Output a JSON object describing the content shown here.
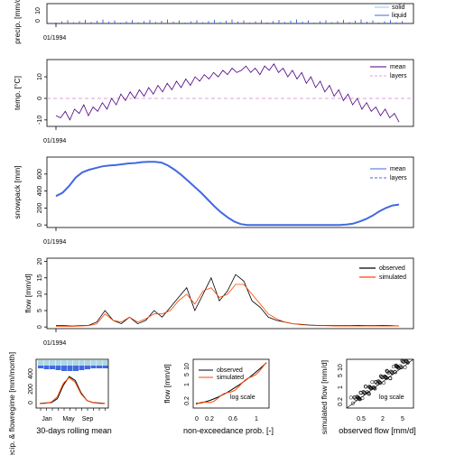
{
  "chart_data": [
    {
      "id": "precip",
      "type": "bar",
      "ylabel": "precip. [mm/d]",
      "x_tick_label": "01/1994",
      "y_ticks": [
        0,
        10
      ],
      "legend": [
        "solid",
        "liquid"
      ],
      "colors": {
        "solid": "#87cefa",
        "liquid": "#4169e1"
      }
    },
    {
      "id": "temperature",
      "type": "line",
      "ylabel": "temp. [°C]",
      "x_tick_label": "01/1994",
      "y_ticks": [
        -10,
        0,
        10
      ],
      "ylim": [
        -13,
        18
      ],
      "legend": [
        "mean",
        "layers"
      ],
      "colors": {
        "mean": "#4b0082",
        "layers": "#dda0dd"
      },
      "series": [
        {
          "name": "mean",
          "values": [
            -8,
            -9,
            -6,
            -10,
            -5,
            -7,
            -3,
            -8,
            -4,
            -6,
            -2,
            -5,
            0,
            -3,
            2,
            -1,
            3,
            0,
            4,
            1,
            5,
            2,
            6,
            3,
            7,
            4,
            8,
            5,
            9,
            6,
            10,
            8,
            11,
            9,
            12,
            10,
            13,
            11,
            14,
            12,
            13,
            15,
            12,
            14,
            11,
            15,
            13,
            16,
            12,
            14,
            10,
            13,
            9,
            12,
            7,
            10,
            5,
            8,
            3,
            6,
            1,
            4,
            -1,
            2,
            -3,
            0,
            -5,
            -2,
            -6,
            -4,
            -8,
            -5,
            -9,
            -7,
            -11
          ]
        }
      ]
    },
    {
      "id": "snowpack",
      "type": "line",
      "ylabel": "snowpack [mm]",
      "x_tick_label": "01/1994",
      "y_ticks": [
        0,
        200,
        400,
        600
      ],
      "ylim": [
        -30,
        800
      ],
      "legend": [
        "mean",
        "layers"
      ],
      "colors": {
        "mean": "#4169e1",
        "layers": "#4169e1"
      },
      "series": [
        {
          "name": "mean",
          "values": [
            340,
            380,
            460,
            560,
            620,
            650,
            670,
            690,
            700,
            705,
            715,
            725,
            730,
            740,
            745,
            745,
            735,
            700,
            650,
            590,
            520,
            450,
            380,
            300,
            220,
            150,
            90,
            40,
            10,
            0,
            0,
            0,
            0,
            0,
            0,
            0,
            0,
            0,
            0,
            0,
            0,
            0,
            0,
            0,
            5,
            15,
            40,
            70,
            110,
            160,
            200,
            230,
            240
          ]
        }
      ]
    },
    {
      "id": "flow",
      "type": "line",
      "ylabel": "flow [mm/d]",
      "x_tick_label": "01/1994",
      "y_ticks": [
        0,
        5,
        10,
        15,
        20
      ],
      "ylim": [
        -0.5,
        21
      ],
      "legend": [
        "observed",
        "simulated"
      ],
      "colors": {
        "observed": "#000000",
        "simulated": "#ff4500"
      },
      "series": [
        {
          "name": "observed",
          "values": [
            0.4,
            0.4,
            0.3,
            0.4,
            0.5,
            1.5,
            5,
            2,
            1,
            3,
            1,
            2,
            5,
            3,
            6,
            9,
            12,
            5,
            10,
            15,
            8,
            11,
            16,
            14,
            8,
            6,
            3,
            2,
            1.5,
            1,
            0.8,
            0.6,
            0.5,
            0.5,
            0.4,
            0.4,
            0.4,
            0.5,
            0.4,
            0.4,
            0.5,
            0.4,
            0.3
          ]
        },
        {
          "name": "simulated",
          "values": [
            0.2,
            0.2,
            0.2,
            0.3,
            0.4,
            1,
            4,
            2,
            1.5,
            3,
            1.5,
            2.5,
            4,
            4,
            5,
            8,
            10,
            7,
            11,
            12,
            9,
            10,
            13,
            13,
            10,
            7,
            4,
            2.5,
            1.5,
            1,
            0.7,
            0.5,
            0.4,
            0.4,
            0.3,
            0.3,
            0.3,
            0.3,
            0.3,
            0.3,
            0.3,
            0.3,
            0.3
          ]
        }
      ]
    },
    {
      "id": "regime",
      "type": "line",
      "ylabel": "precip. & flowregime [mm/month]",
      "xlabel": "30-days rolling mean",
      "x_ticks": [
        "Jan",
        "May",
        "Sep"
      ],
      "y_ticks": [
        0,
        200,
        400
      ],
      "colors": {
        "observed": "#000000",
        "simulated": "#ff4500"
      },
      "series": [
        {
          "name": "observed",
          "values": [
            10,
            15,
            20,
            60,
            200,
            290,
            250,
            120,
            40,
            20,
            15,
            10
          ]
        },
        {
          "name": "simulated",
          "values": [
            8,
            12,
            25,
            80,
            220,
            280,
            230,
            110,
            40,
            18,
            12,
            8
          ]
        }
      ]
    },
    {
      "id": "fdc",
      "type": "line",
      "xlabel": "non-exceedance prob. [-]",
      "ylabel": "flow [mm/d]",
      "x_ticks": [
        "0",
        "0.2",
        "0.6",
        "1"
      ],
      "y_ticks": [
        "0.2",
        "1",
        "5",
        "10"
      ],
      "legend": [
        "observed",
        "simulated"
      ],
      "note": "log scale",
      "colors": {
        "observed": "#000000",
        "simulated": "#ff4500"
      }
    },
    {
      "id": "scatter",
      "type": "scatter",
      "xlabel": "observed flow [mm/d]",
      "ylabel": "simulated flow [mm/d]",
      "x_ticks": [
        "0.5",
        "2",
        "5"
      ],
      "y_ticks": [
        "0.2",
        "1",
        "5",
        "10"
      ],
      "note": "log scale"
    }
  ]
}
